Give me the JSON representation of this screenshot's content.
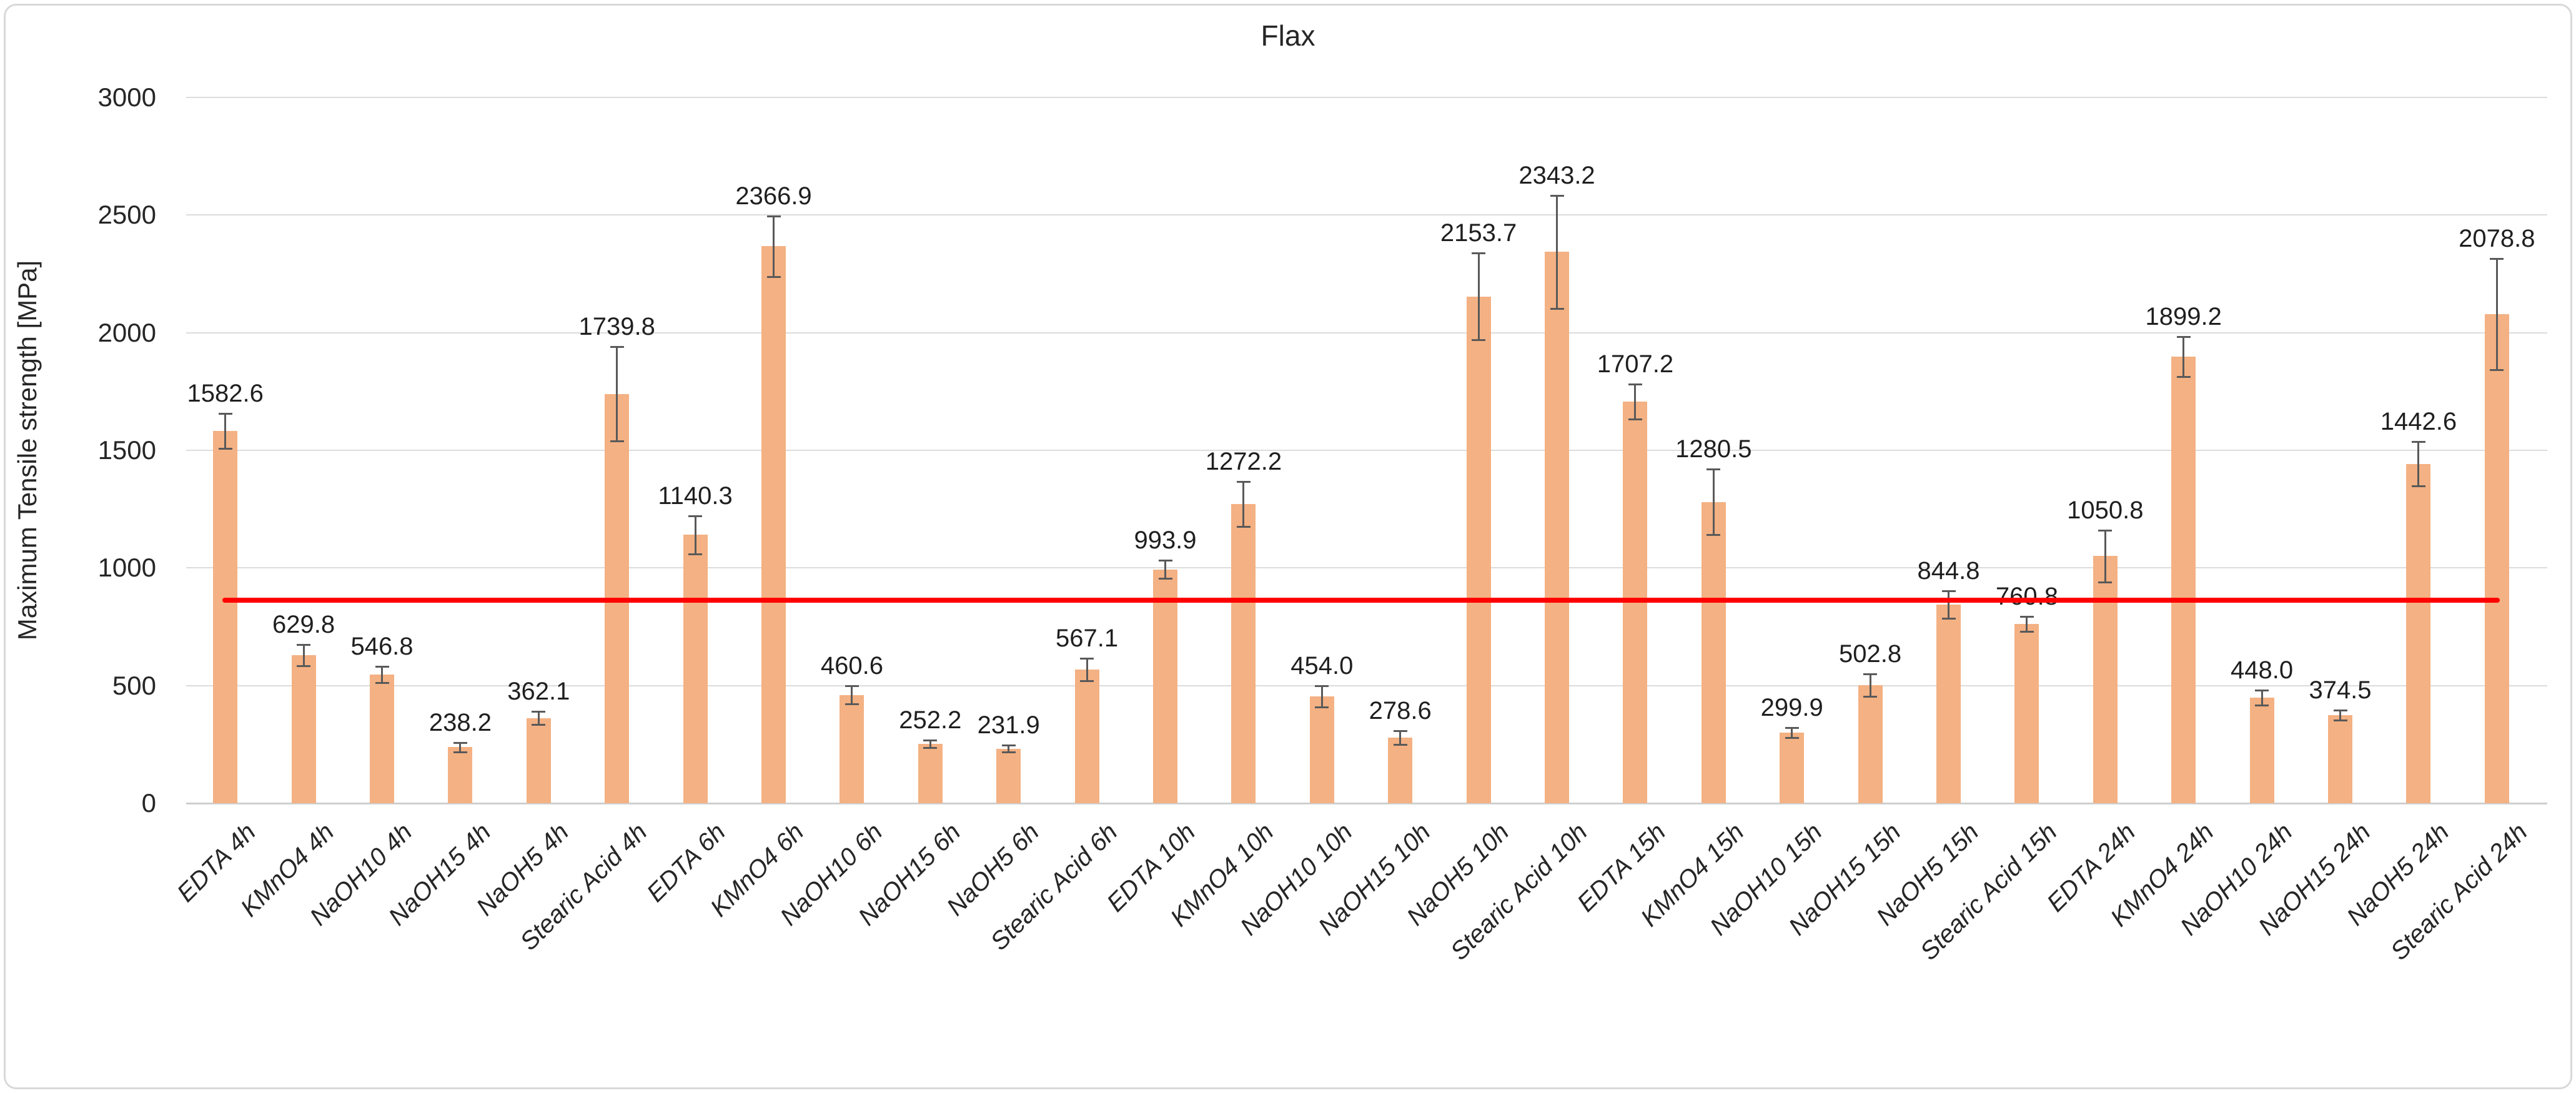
{
  "chart_data": {
    "type": "bar",
    "title": "Flax",
    "ylabel": "Maximum Tensile strength [MPa]",
    "xlabel": "",
    "ylim": [
      0,
      3000
    ],
    "yticks": [
      0,
      500,
      1000,
      1500,
      2000,
      2500,
      3000
    ],
    "grid": true,
    "legend_position": "none",
    "bar_color": "#F4B183",
    "error_bar_color": "#595959",
    "value_label_decimals": 1,
    "reference_line": {
      "value": 862,
      "color": "#ff0000"
    },
    "categories": [
      "EDTA 4h",
      "KMnO4 4h",
      "NaOH10 4h",
      "NaOH15 4h",
      "NaOH5 4h",
      "Stearic Acid  4h",
      "EDTA 6h",
      "KMnO4 6h",
      "NaOH10 6h",
      "NaOH15 6h",
      "NaOH5 6h",
      "Stearic Acid  6h",
      "EDTA 10h",
      "KMnO4 10h",
      "NaOH10 10h",
      "NaOH15 10h",
      "NaOH5 10h",
      "Stearic Acid  10h",
      "EDTA 15h",
      "KMnO4 15h",
      "NaOH10 15h",
      "NaOH15 15h",
      "NaOH5 15h",
      "Stearic Acid  15h",
      "EDTA 24h",
      "KMnO4 24h",
      "NaOH10 24h",
      "NaOH15 24h",
      "NaOH5 24h",
      "Stearic Acid  24h"
    ],
    "values": [
      1582.6,
      629.8,
      546.8,
      238.2,
      362.1,
      1739.8,
      1140.3,
      2366.9,
      460.6,
      252.2,
      231.9,
      567.1,
      993.9,
      1272.2,
      454.0,
      278.6,
      2153.7,
      2343.2,
      1707.2,
      1280.5,
      299.9,
      502.8,
      844.8,
      760.8,
      1050.8,
      1899.2,
      448.0,
      374.5,
      1442.6,
      2078.8
    ],
    "errors_estimated": [
      75,
      45,
      35,
      20,
      28,
      200,
      80,
      130,
      38,
      15,
      15,
      48,
      38,
      95,
      45,
      30,
      185,
      240,
      75,
      140,
      22,
      48,
      58,
      32,
      110,
      85,
      32,
      22,
      95,
      235
    ]
  }
}
